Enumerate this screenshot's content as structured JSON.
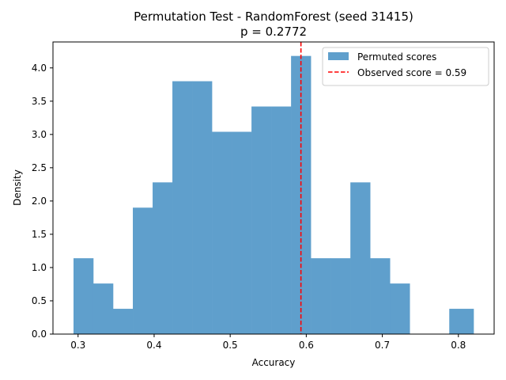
{
  "chart_data": {
    "type": "histogram",
    "title": "Permutation Test - RandomForest (seed 31415)",
    "subtitle": "p = 0.2772",
    "xlabel": "Accuracy",
    "ylabel": "Density",
    "xlim": [
      0.267,
      0.847
    ],
    "ylim": [
      0,
      4.39
    ],
    "xticks": [
      0.3,
      0.4,
      0.5,
      0.6,
      0.7,
      0.8
    ],
    "yticks": [
      0.0,
      0.5,
      1.0,
      1.5,
      2.0,
      2.5,
      3.0,
      3.5,
      4.0
    ],
    "bin_edges": [
      0.294,
      0.32,
      0.346,
      0.372,
      0.398,
      0.424,
      0.45,
      0.476,
      0.502,
      0.528,
      0.554,
      0.58,
      0.606,
      0.632,
      0.658,
      0.684,
      0.71,
      0.736,
      0.762,
      0.788,
      0.82
    ],
    "densities": [
      1.14,
      0.76,
      0.38,
      1.9,
      2.28,
      3.8,
      3.8,
      3.04,
      3.04,
      3.42,
      3.42,
      4.18,
      1.14,
      1.14,
      2.28,
      1.14,
      0.76,
      0,
      0,
      0.38
    ],
    "bar_color": "#5f9fcc",
    "observed_score": 0.593,
    "observed_color": "#ff0000",
    "legend": {
      "placement": "top-right",
      "entries": [
        "Permuted scores",
        "Observed score = 0.59"
      ]
    }
  }
}
